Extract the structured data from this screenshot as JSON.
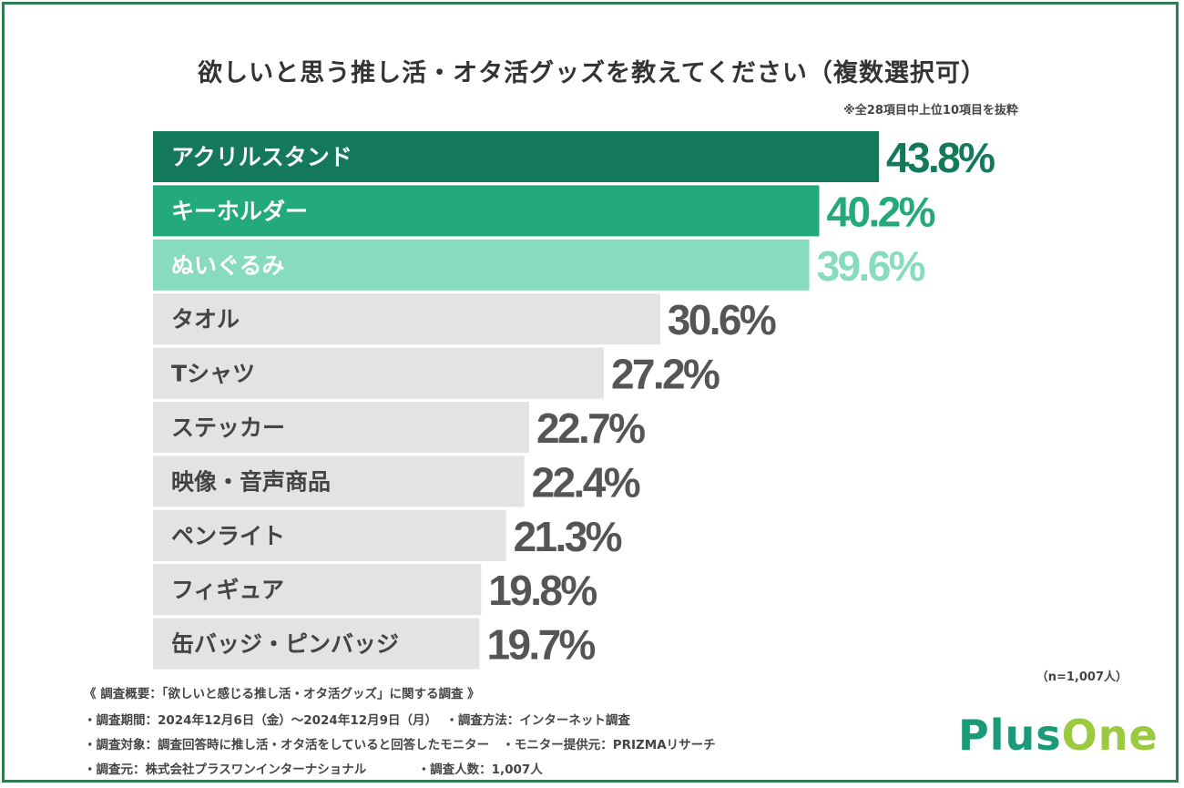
{
  "chart_data": {
    "type": "bar",
    "orientation": "horizontal",
    "title": "欲しいと思う推し活・オタ活グッズを教えてください（複数選択可）",
    "note": "※全28項目中上位10項目を抜粋",
    "categories": [
      "アクリルスタンド",
      "キーホルダー",
      "ぬいぐるみ",
      "タオル",
      "Tシャツ",
      "ステッカー",
      "映像・音声商品",
      "ペンライト",
      "フィギュア",
      "缶バッジ・ピンバッジ"
    ],
    "values": [
      43.8,
      40.2,
      39.6,
      30.6,
      27.2,
      22.7,
      22.4,
      21.3,
      19.8,
      19.7
    ],
    "value_labels": [
      "43.8%",
      "40.2%",
      "39.6%",
      "30.6%",
      "27.2%",
      "22.7%",
      "22.4%",
      "21.3%",
      "19.8%",
      "19.7%"
    ],
    "unit": "%",
    "colors": [
      "#13795a",
      "#23a97c",
      "#86dcbc",
      "#e3e3e3",
      "#e3e3e3",
      "#e3e3e3",
      "#e3e3e3",
      "#e3e3e3",
      "#e3e3e3",
      "#e3e3e3"
    ],
    "label_colors": [
      "#ffffff",
      "#ffffff",
      "#ffffff",
      "#444444",
      "#444444",
      "#444444",
      "#444444",
      "#444444",
      "#444444",
      "#444444"
    ],
    "value_colors": [
      "#13795a",
      "#23a97c",
      "#86dcbc",
      "#555555",
      "#555555",
      "#555555",
      "#555555",
      "#555555",
      "#555555",
      "#555555"
    ],
    "grid": false,
    "legend": "none"
  },
  "sample_size": "（n=1,007人）",
  "footer": {
    "line1": "《 調査概要：「欲しいと感じる推し活・オタ活グッズ」に関する調査 》",
    "line2": "・調査期間：2024年12月6日（金）～2024年12月9日（月）  ・調査方法：インターネット調査",
    "line3": "・調査対象：調査回答時に推し活・オタ活をしていると回答したモニター   ・モニター提供元：PRIZMAリサーチ",
    "line4": "・調査元：株式会社プラスワンインターナショナル            ・調査人数：1,007人"
  },
  "logo": {
    "part1": "Plus",
    "part2": "One"
  }
}
